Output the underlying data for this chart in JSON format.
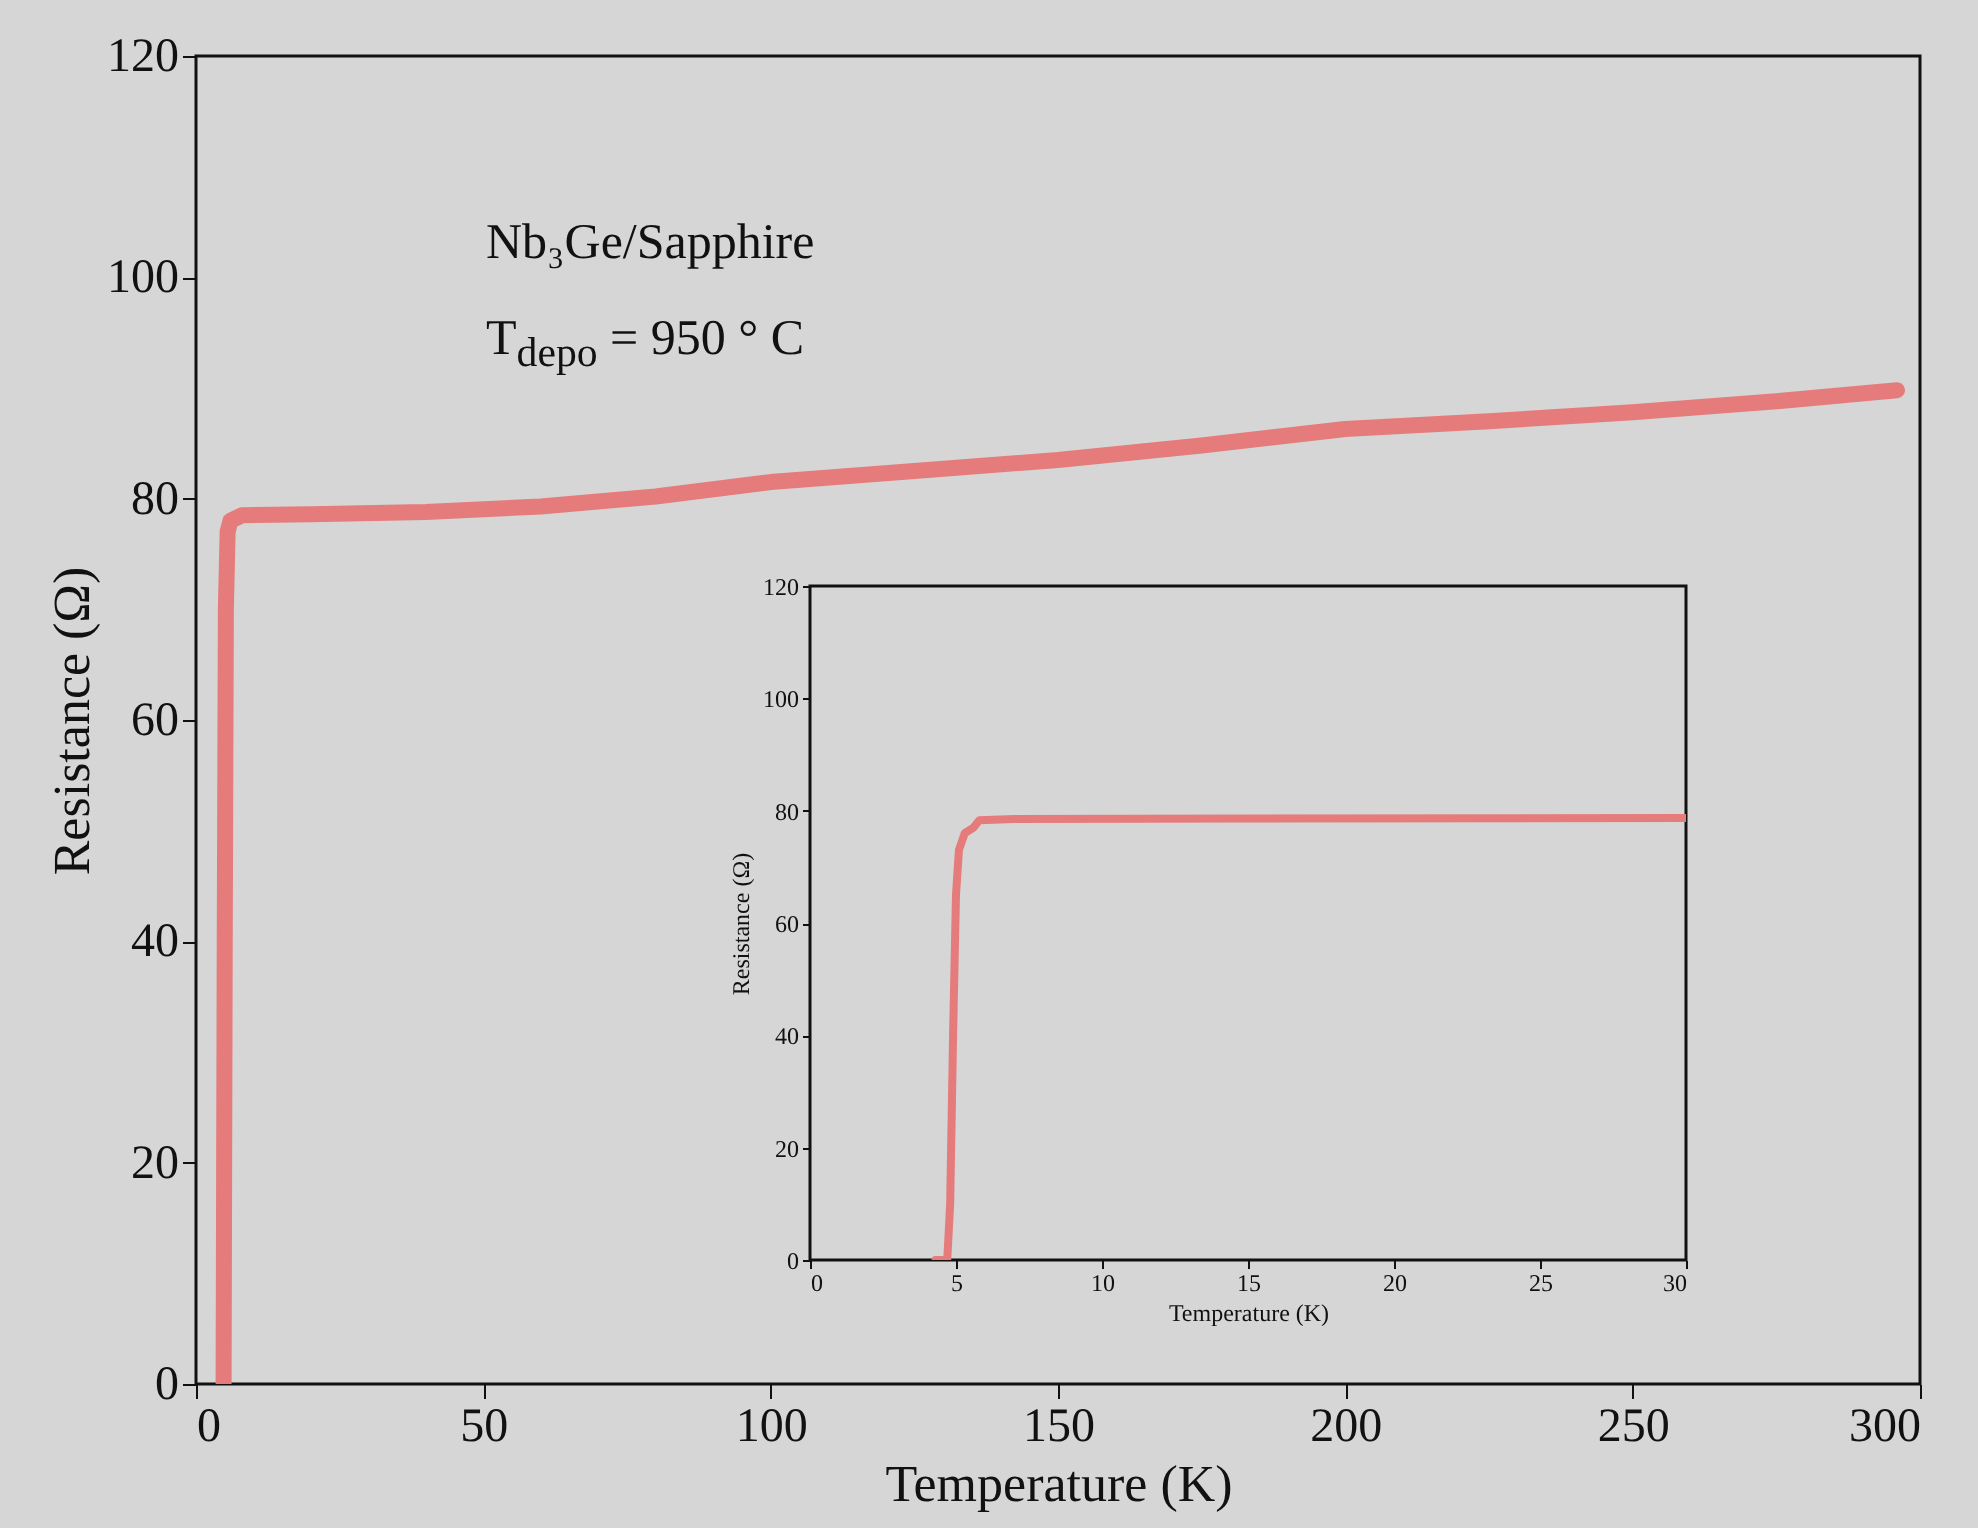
{
  "chart_data": [
    {
      "type": "line",
      "xlabel": "Temperature (K)",
      "ylabel": "Resistance (Ω)",
      "annotations": [
        "Nb₃Ge/Sapphire",
        "T$_{depo}$ = 950 ° C"
      ],
      "xlim": [
        0,
        300
      ],
      "ylim": [
        0,
        120
      ],
      "xticks": [
        0,
        50,
        100,
        150,
        200,
        250,
        300
      ],
      "yticks": [
        0,
        20,
        40,
        60,
        80,
        100,
        120
      ],
      "grid": false,
      "series": [
        {
          "color": "#e57b7b",
          "x": [
            4.8,
            5.0,
            5.2,
            5.5,
            6,
            8,
            20,
            40,
            60,
            80,
            100,
            125,
            150,
            175,
            200,
            225,
            250,
            275,
            296
          ],
          "values": [
            0,
            40,
            70,
            77,
            78,
            78.5,
            78.6,
            78.8,
            79.3,
            80.2,
            81.5,
            82.5,
            83.5,
            84.8,
            86.3,
            87,
            87.8,
            88.8,
            89.8
          ]
        }
      ]
    },
    {
      "type": "line",
      "xlabel": "Temperature (K)",
      "ylabel": "Resistance (Ω)",
      "xlim": [
        0,
        30
      ],
      "ylim": [
        0,
        120
      ],
      "xticks": [
        0,
        5,
        10,
        15,
        20,
        25,
        30
      ],
      "yticks": [
        0,
        20,
        40,
        60,
        80,
        100,
        120
      ],
      "grid": false,
      "series": [
        {
          "color": "#e57b7b",
          "x": [
            4.3,
            4.7,
            4.8,
            4.9,
            5.0,
            5.1,
            5.3,
            5.6,
            5.8,
            7,
            15,
            30
          ],
          "values": [
            0,
            0,
            10,
            40,
            65,
            73,
            76,
            77,
            78.3,
            78.5,
            78.6,
            78.7
          ]
        }
      ]
    }
  ]
}
